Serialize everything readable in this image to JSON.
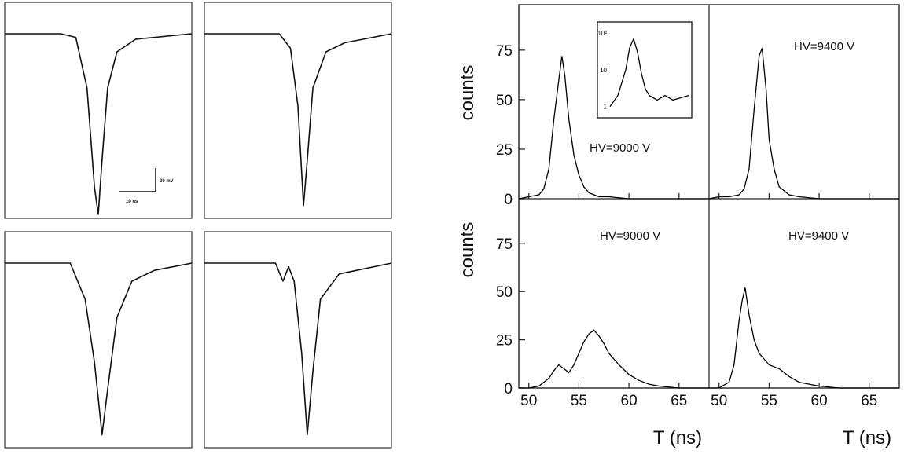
{
  "oscilloscope": {
    "scale_bar": {
      "time_label": "10 ns",
      "voltage_label": "20 mV"
    },
    "panels": [
      {
        "id": "tl",
        "trace": [
          [
            0,
            0.0
          ],
          [
            0.3,
            0.0
          ],
          [
            0.38,
            0.02
          ],
          [
            0.44,
            0.3
          ],
          [
            0.48,
            0.85
          ],
          [
            0.5,
            1.0
          ],
          [
            0.52,
            0.7
          ],
          [
            0.55,
            0.3
          ],
          [
            0.6,
            0.1
          ],
          [
            0.7,
            0.03
          ],
          [
            1,
            0.0
          ]
        ]
      },
      {
        "id": "tr",
        "trace": [
          [
            0,
            0.0
          ],
          [
            0.4,
            0.0
          ],
          [
            0.46,
            0.08
          ],
          [
            0.5,
            0.4
          ],
          [
            0.53,
            0.95
          ],
          [
            0.55,
            0.7
          ],
          [
            0.58,
            0.3
          ],
          [
            0.65,
            0.1
          ],
          [
            0.75,
            0.05
          ],
          [
            1,
            0.0
          ]
        ]
      },
      {
        "id": "bl",
        "trace": [
          [
            0,
            0.0
          ],
          [
            0.35,
            0.0
          ],
          [
            0.43,
            0.2
          ],
          [
            0.48,
            0.55
          ],
          [
            0.52,
            0.95
          ],
          [
            0.55,
            0.7
          ],
          [
            0.6,
            0.3
          ],
          [
            0.68,
            0.1
          ],
          [
            0.8,
            0.04
          ],
          [
            1,
            0.0
          ]
        ]
      },
      {
        "id": "br",
        "trace": [
          [
            0,
            0.0
          ],
          [
            0.38,
            0.0
          ],
          [
            0.42,
            0.1
          ],
          [
            0.45,
            0.02
          ],
          [
            0.48,
            0.1
          ],
          [
            0.52,
            0.5
          ],
          [
            0.55,
            0.95
          ],
          [
            0.58,
            0.6
          ],
          [
            0.62,
            0.2
          ],
          [
            0.72,
            0.06
          ],
          [
            1,
            0.0
          ]
        ]
      }
    ]
  },
  "chart_data": [
    {
      "type": "line",
      "panel": "top-left",
      "xlim": [
        49,
        68
      ],
      "ylim": [
        0,
        90
      ],
      "ylabel": "counts",
      "annotation": "HV=9000 V",
      "x": [
        49,
        50,
        51,
        51.5,
        52,
        52.5,
        53,
        53.3,
        53.6,
        54,
        54.5,
        55,
        55.5,
        56,
        57,
        58,
        60,
        63,
        68
      ],
      "y": [
        0,
        1,
        2,
        5,
        15,
        40,
        60,
        72,
        62,
        40,
        22,
        12,
        6,
        3,
        1,
        1,
        0,
        0,
        0
      ],
      "inset": {
        "type": "line",
        "scale": "log",
        "ylabels": [
          "1",
          "10",
          "10²"
        ],
        "x": [
          0,
          0.1,
          0.2,
          0.25,
          0.3,
          0.35,
          0.4,
          0.45,
          0.5,
          0.6,
          0.7,
          0.8,
          1.0
        ],
        "y": [
          1,
          2,
          10,
          40,
          70,
          30,
          8,
          3,
          2,
          1.5,
          2,
          1.5,
          2
        ]
      }
    },
    {
      "type": "line",
      "panel": "top-right",
      "xlim": [
        49,
        68
      ],
      "ylim": [
        0,
        90
      ],
      "annotation": "HV=9400 V",
      "x": [
        49,
        50,
        51,
        52,
        52.5,
        53,
        53.5,
        54,
        54.3,
        54.7,
        55,
        55.5,
        56,
        57,
        58,
        60,
        63,
        68
      ],
      "y": [
        0,
        1,
        1,
        2,
        5,
        15,
        45,
        72,
        76,
        55,
        30,
        15,
        6,
        2,
        1,
        0,
        0,
        0
      ]
    },
    {
      "type": "line",
      "panel": "bottom-left",
      "xlim": [
        49,
        68
      ],
      "ylim": [
        0,
        90
      ],
      "ylabel": "counts",
      "xlabel": "T (ns)",
      "annotation": "HV=9000 V",
      "xticks": [
        "50",
        "55",
        "60",
        "65"
      ],
      "x": [
        49,
        50,
        51,
        52,
        52.5,
        53,
        53.5,
        54,
        54.5,
        55,
        55.5,
        56,
        56.5,
        57,
        57.5,
        58,
        59,
        60,
        61,
        62,
        63,
        65,
        68
      ],
      "y": [
        0,
        0,
        1,
        5,
        9,
        12,
        10,
        8,
        12,
        18,
        24,
        28,
        30,
        27,
        23,
        18,
        12,
        7,
        4,
        2,
        1,
        0,
        0
      ]
    },
    {
      "type": "line",
      "panel": "bottom-right",
      "xlim": [
        49,
        68
      ],
      "ylim": [
        0,
        90
      ],
      "xlabel": "T (ns)",
      "annotation": "HV=9400 V",
      "xticks": [
        "50",
        "55",
        "60",
        "65"
      ],
      "x": [
        49,
        50,
        51,
        51.5,
        52,
        52.3,
        52.6,
        53,
        53.5,
        54,
        55,
        56,
        57,
        58,
        59,
        60,
        62,
        65,
        68
      ],
      "y": [
        0,
        0,
        3,
        12,
        35,
        45,
        52,
        38,
        25,
        18,
        12,
        10,
        6,
        3,
        2,
        1,
        0,
        0,
        0
      ]
    }
  ],
  "yticks": [
    "0",
    "25",
    "50",
    "75"
  ]
}
